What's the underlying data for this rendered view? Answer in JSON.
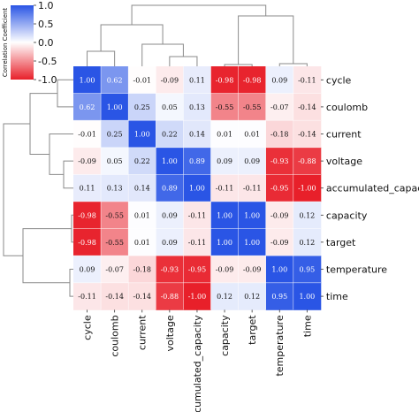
{
  "chart_data": {
    "type": "heatmap",
    "title": "",
    "rows": [
      "cycle",
      "coulomb",
      "current",
      "voltage",
      "accumulated_capacity",
      "capacity",
      "target",
      "temperature",
      "time"
    ],
    "columns": [
      "cycle",
      "coulomb",
      "current",
      "voltage",
      "accumulated_capacity",
      "capacity",
      "target",
      "temperature",
      "time"
    ],
    "values": [
      [
        "1.00",
        "0.62",
        "-0.01",
        "-0.09",
        "0.11",
        "-0.98",
        "-0.98",
        "0.09",
        "-0.11"
      ],
      [
        "0.62",
        "1.00",
        "0.25",
        "0.05",
        "0.13",
        "-0.55",
        "-0.55",
        "-0.07",
        "-0.14"
      ],
      [
        "-0.01",
        "0.25",
        "1.00",
        "0.22",
        "0.14",
        "0.01",
        "0.01",
        "-0.18",
        "-0.14"
      ],
      [
        "-0.09",
        "0.05",
        "0.22",
        "1.00",
        "0.89",
        "0.09",
        "0.09",
        "-0.93",
        "-0.88"
      ],
      [
        "0.11",
        "0.13",
        "0.14",
        "0.89",
        "1.00",
        "-0.11",
        "-0.11",
        "-0.95",
        "-1.00"
      ],
      [
        "-0.98",
        "-0.55",
        "0.01",
        "0.09",
        "-0.11",
        "1.00",
        "1.00",
        "-0.09",
        "0.12"
      ],
      [
        "-0.98",
        "-0.55",
        "0.01",
        "0.09",
        "-0.11",
        "1.00",
        "1.00",
        "-0.09",
        "0.12"
      ],
      [
        "0.09",
        "-0.07",
        "-0.18",
        "-0.93",
        "-0.95",
        "-0.09",
        "-0.09",
        "1.00",
        "0.95"
      ],
      [
        "-0.11",
        "-0.14",
        "-0.14",
        "-0.88",
        "-1.00",
        "0.12",
        "0.12",
        "0.95",
        "1.00"
      ]
    ],
    "colorbar": {
      "label": "Correlation Coefficient",
      "ticks": [
        "1.0",
        "0.5",
        "0.0",
        "-0.5",
        "-1.0"
      ],
      "range": [
        -1.0,
        1.0
      ],
      "colors": {
        "negative": "#e8202a",
        "neutral": "#ffffff",
        "positive": "#2a55e5"
      }
    },
    "dendrogram": {
      "rows": "left",
      "columns": "top"
    }
  }
}
